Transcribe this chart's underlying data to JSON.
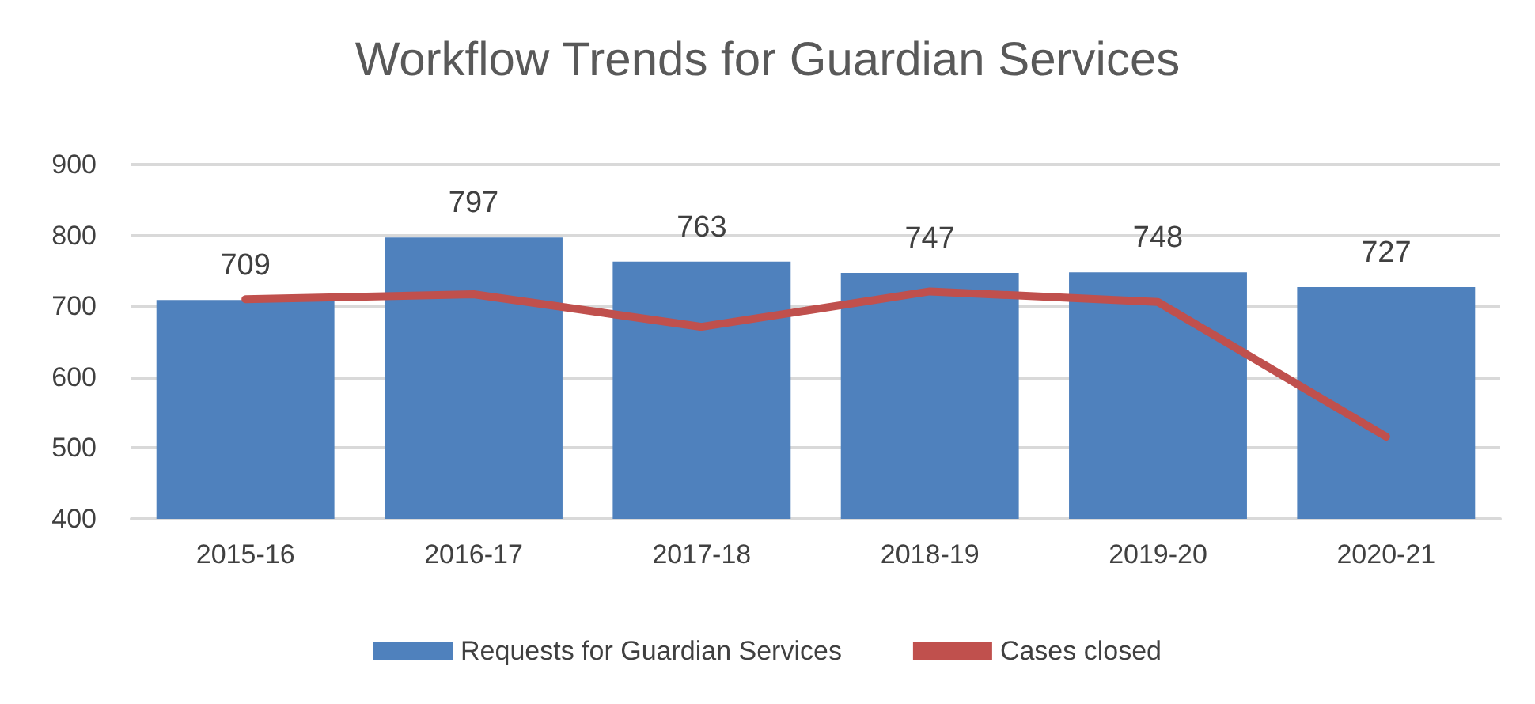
{
  "chart_data": {
    "type": "bar",
    "title": "Workflow Trends for Guardian Services",
    "categories": [
      "2015-16",
      "2016-17",
      "2017-18",
      "2018-19",
      "2019-20",
      "2020-21"
    ],
    "series": [
      {
        "name": "Requests for Guardian Services",
        "color": "#4f81bd",
        "values": [
          709,
          797,
          763,
          747,
          748,
          727
        ],
        "value_labels": [
          "709",
          "797",
          "763",
          "747",
          "748",
          "727"
        ]
      },
      {
        "name": "Cases closed",
        "type": "line",
        "color": "#c0504d",
        "values": [
          710,
          717,
          671,
          721,
          706,
          516
        ]
      }
    ],
    "ylim": [
      400,
      900
    ],
    "yticks": [
      400,
      500,
      600,
      700,
      800,
      900
    ],
    "grid": "y",
    "legend": "bottom",
    "marker": "none",
    "line_style": "solid"
  }
}
